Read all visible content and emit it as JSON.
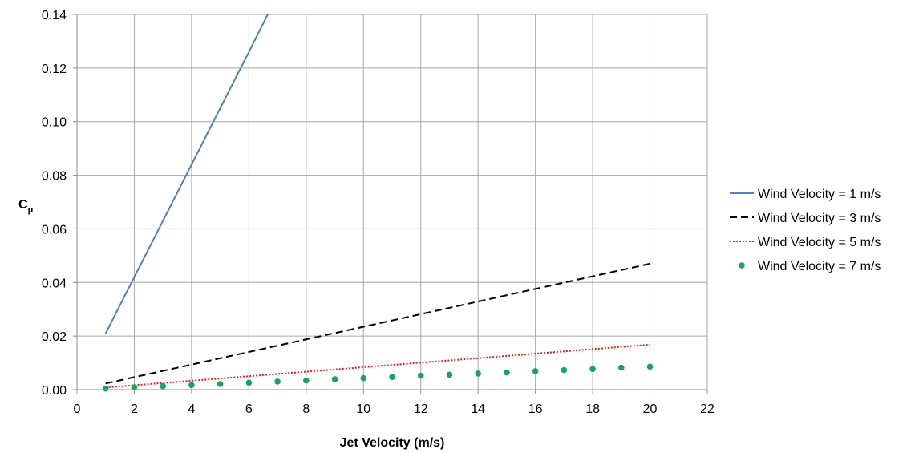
{
  "chart_data": {
    "type": "line",
    "title": "",
    "xlabel": "Jet Velocity (m/s)",
    "ylabel_main": "C",
    "ylabel_sub": "μ",
    "xlim": [
      0,
      22
    ],
    "ylim": [
      0,
      0.14
    ],
    "xticks": [
      "0",
      "2",
      "4",
      "6",
      "8",
      "10",
      "12",
      "14",
      "16",
      "18",
      "20",
      "22"
    ],
    "yticks": [
      "0.00",
      "0.02",
      "0.04",
      "0.06",
      "0.08",
      "0.10",
      "0.12",
      "0.14"
    ],
    "grid": true,
    "legend_position": "right",
    "series": [
      {
        "name": "Wind Velocity = 1 m/s",
        "style": "solid",
        "marker": "none",
        "color": "#4f81bd",
        "x": [
          1,
          2,
          3,
          4,
          5,
          6,
          6.66
        ],
        "y": [
          0.021,
          0.042,
          0.063,
          0.084,
          0.105,
          0.126,
          0.14
        ]
      },
      {
        "name": "Wind Velocity = 3 m/s",
        "style": "dashed",
        "marker": "none",
        "color": "#000000",
        "x": [
          1,
          20
        ],
        "y": [
          0.0023,
          0.047
        ]
      },
      {
        "name": "Wind Velocity = 5 m/s",
        "style": "dotted",
        "marker": "none",
        "color": "#e41a1c",
        "x": [
          1,
          20
        ],
        "y": [
          0.0008,
          0.0168
        ]
      },
      {
        "name": "Wind Velocity = 7 m/s",
        "style": "none",
        "marker": "circle",
        "color": "#1aa260",
        "x": [
          1,
          2,
          3,
          4,
          5,
          6,
          7,
          8,
          9,
          10,
          11,
          12,
          13,
          14,
          15,
          16,
          17,
          18,
          19,
          20
        ],
        "y": [
          0.0004,
          0.0009,
          0.0013,
          0.0017,
          0.0021,
          0.0026,
          0.003,
          0.0034,
          0.0039,
          0.0043,
          0.0047,
          0.0052,
          0.0056,
          0.006,
          0.0064,
          0.0069,
          0.0073,
          0.0077,
          0.0082,
          0.0086
        ]
      }
    ]
  }
}
